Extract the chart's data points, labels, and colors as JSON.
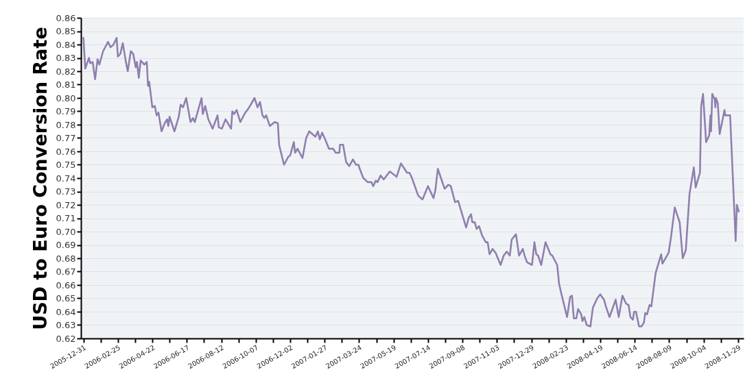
{
  "chart_data": {
    "type": "line",
    "ylabel": "USD to Euro Conversion Rate",
    "x": [
      "2005-12-31",
      "2006-01-03",
      "2006-01-09",
      "2006-01-11",
      "2006-01-15",
      "2006-01-19",
      "2006-01-23",
      "2006-01-26",
      "2006-02-01",
      "2006-02-09",
      "2006-02-13",
      "2006-02-18",
      "2006-02-23",
      "2006-02-25",
      "2006-03-01",
      "2006-03-05",
      "2006-03-10",
      "2006-03-13",
      "2006-03-18",
      "2006-03-22",
      "2006-03-26",
      "2006-03-28",
      "2006-03-31",
      "2006-04-03",
      "2006-04-09",
      "2006-04-13",
      "2006-04-15",
      "2006-04-17",
      "2006-04-22",
      "2006-04-26",
      "2006-04-29",
      "2006-05-02",
      "2006-05-07",
      "2006-05-12",
      "2006-05-16",
      "2006-05-18",
      "2006-05-20",
      "2006-05-28",
      "2006-06-04",
      "2006-06-07",
      "2006-06-11",
      "2006-06-16",
      "2006-06-23",
      "2006-06-27",
      "2006-06-30",
      "2006-07-11",
      "2006-07-13",
      "2006-07-17",
      "2006-07-22",
      "2006-07-29",
      "2006-08-06",
      "2006-08-08",
      "2006-08-13",
      "2006-08-19",
      "2006-08-28",
      "2006-08-30",
      "2006-09-02",
      "2006-09-06",
      "2006-09-12",
      "2006-09-20",
      "2006-09-25",
      "2006-09-29",
      "2006-10-05",
      "2006-10-10",
      "2006-10-14",
      "2006-10-18",
      "2006-10-21",
      "2006-10-24",
      "2006-10-30",
      "2006-11-07",
      "2006-11-12",
      "2006-11-14",
      "2006-11-22",
      "2006-11-29",
      "2006-12-02",
      "2006-12-08",
      "2006-12-10",
      "2006-12-14",
      "2006-12-22",
      "2006-12-28",
      "2007-01-02",
      "2007-01-12",
      "2007-01-16",
      "2007-01-19",
      "2007-01-23",
      "2007-01-27",
      "2007-02-03",
      "2007-02-10",
      "2007-02-14",
      "2007-02-20",
      "2007-02-21",
      "2007-02-26",
      "2007-03-03",
      "2007-03-08",
      "2007-03-14",
      "2007-03-19",
      "2007-03-23",
      "2007-03-25",
      "2007-03-31",
      "2007-04-07",
      "2007-04-13",
      "2007-04-16",
      "2007-04-20",
      "2007-04-23",
      "2007-04-28",
      "2007-05-03",
      "2007-05-13",
      "2007-05-24",
      "2007-05-31",
      "2007-06-10",
      "2007-06-14",
      "2007-06-18",
      "2007-06-28",
      "2007-07-05",
      "2007-07-14",
      "2007-07-23",
      "2007-07-26",
      "2007-07-30",
      "2007-08-10",
      "2007-08-16",
      "2007-08-20",
      "2007-08-27",
      "2007-09-01",
      "2007-09-14",
      "2007-09-18",
      "2007-09-22",
      "2007-09-24",
      "2007-09-28",
      "2007-10-01",
      "2007-10-05",
      "2007-10-10",
      "2007-10-16",
      "2007-10-19",
      "2007-10-22",
      "2007-10-27",
      "2007-11-01",
      "2007-11-09",
      "2007-11-14",
      "2007-11-19",
      "2007-11-24",
      "2007-11-27",
      "2007-12-04",
      "2007-12-09",
      "2007-12-15",
      "2007-12-18",
      "2007-12-22",
      "2007-12-30",
      "2008-01-03",
      "2008-01-06",
      "2008-01-09",
      "2008-01-14",
      "2008-01-21",
      "2008-01-29",
      "2008-02-01",
      "2008-02-09",
      "2008-02-12",
      "2008-02-16",
      "2008-02-25",
      "2008-03-01",
      "2008-03-04",
      "2008-03-07",
      "2008-03-11",
      "2008-03-14",
      "2008-03-19",
      "2008-03-21",
      "2008-03-24",
      "2008-03-28",
      "2008-04-03",
      "2008-04-07",
      "2008-04-14",
      "2008-04-19",
      "2008-04-25",
      "2008-04-28",
      "2008-05-04",
      "2008-05-14",
      "2008-05-19",
      "2008-05-25",
      "2008-05-31",
      "2008-06-04",
      "2008-06-07",
      "2008-06-11",
      "2008-06-13",
      "2008-06-16",
      "2008-06-21",
      "2008-06-25",
      "2008-06-29",
      "2008-07-01",
      "2008-07-04",
      "2008-07-08",
      "2008-07-11",
      "2008-07-18",
      "2008-07-27",
      "2008-07-29",
      "2008-08-08",
      "2008-08-12",
      "2008-08-18",
      "2008-08-26",
      "2008-08-31",
      "2008-09-05",
      "2008-09-11",
      "2008-09-18",
      "2008-09-21",
      "2008-09-28",
      "2008-09-30",
      "2008-10-03",
      "2008-10-08",
      "2008-10-13",
      "2008-10-15",
      "2008-10-16",
      "2008-10-18",
      "2008-10-22",
      "2008-10-23",
      "2008-10-24",
      "2008-10-27",
      "2008-10-30",
      "2008-11-07",
      "2008-11-08",
      "2008-11-16",
      "2008-11-25",
      "2008-11-27",
      "2008-11-30"
    ],
    "series": [
      {
        "color": "#8f7fae",
        "values": [
          0.845,
          0.822,
          0.83,
          0.826,
          0.827,
          0.814,
          0.829,
          0.825,
          0.835,
          0.842,
          0.838,
          0.84,
          0.845,
          0.831,
          0.833,
          0.841,
          0.827,
          0.82,
          0.835,
          0.833,
          0.823,
          0.827,
          0.815,
          0.828,
          0.825,
          0.827,
          0.809,
          0.812,
          0.793,
          0.794,
          0.787,
          0.789,
          0.775,
          0.781,
          0.784,
          0.779,
          0.786,
          0.775,
          0.786,
          0.795,
          0.793,
          0.8,
          0.782,
          0.785,
          0.782,
          0.8,
          0.788,
          0.794,
          0.784,
          0.777,
          0.787,
          0.778,
          0.777,
          0.784,
          0.777,
          0.79,
          0.788,
          0.791,
          0.782,
          0.789,
          0.792,
          0.795,
          0.8,
          0.793,
          0.797,
          0.787,
          0.785,
          0.787,
          0.779,
          0.782,
          0.781,
          0.765,
          0.75,
          0.756,
          0.757,
          0.767,
          0.759,
          0.762,
          0.755,
          0.77,
          0.775,
          0.771,
          0.775,
          0.769,
          0.774,
          0.77,
          0.762,
          0.762,
          0.759,
          0.759,
          0.765,
          0.765,
          0.752,
          0.749,
          0.754,
          0.75,
          0.75,
          0.747,
          0.74,
          0.737,
          0.737,
          0.734,
          0.738,
          0.737,
          0.742,
          0.739,
          0.745,
          0.741,
          0.751,
          0.744,
          0.744,
          0.74,
          0.727,
          0.724,
          0.734,
          0.725,
          0.731,
          0.747,
          0.732,
          0.735,
          0.734,
          0.722,
          0.723,
          0.703,
          0.71,
          0.713,
          0.707,
          0.707,
          0.702,
          0.704,
          0.697,
          0.692,
          0.692,
          0.683,
          0.687,
          0.684,
          0.675,
          0.682,
          0.685,
          0.682,
          0.694,
          0.698,
          0.682,
          0.687,
          0.682,
          0.677,
          0.675,
          0.692,
          0.683,
          0.682,
          0.675,
          0.692,
          0.683,
          0.682,
          0.675,
          0.661,
          0.653,
          0.636,
          0.651,
          0.652,
          0.635,
          0.635,
          0.642,
          0.638,
          0.633,
          0.636,
          0.63,
          0.629,
          0.643,
          0.65,
          0.653,
          0.649,
          0.644,
          0.636,
          0.649,
          0.636,
          0.652,
          0.646,
          0.645,
          0.636,
          0.634,
          0.64,
          0.64,
          0.629,
          0.629,
          0.632,
          0.639,
          0.638,
          0.645,
          0.644,
          0.669,
          0.683,
          0.676,
          0.684,
          0.696,
          0.718,
          0.707,
          0.68,
          0.686,
          0.728,
          0.748,
          0.733,
          0.744,
          0.794,
          0.803,
          0.767,
          0.772,
          0.787,
          0.775,
          0.803,
          0.799,
          0.793,
          0.8,
          0.796,
          0.773,
          0.791,
          0.787,
          0.787,
          0.693,
          0.72,
          0.715
        ]
      }
    ],
    "xlim": [
      "2005-12-27",
      "2008-12-08"
    ],
    "xticks": [
      "2005-12-31",
      {
        "value": "2006-01-28",
        "label": null
      },
      "2006-02-25",
      {
        "value": "2006-03-25",
        "label": null
      },
      "2006-04-22",
      {
        "value": "2006-05-20",
        "label": null
      },
      "2006-06-17",
      {
        "value": "2006-07-15",
        "label": null
      },
      "2006-08-12",
      {
        "value": "2006-09-09",
        "label": null
      },
      "2006-10-07",
      {
        "value": "2006-11-04",
        "label": null
      },
      "2006-12-02",
      {
        "value": "2006-12-30",
        "label": null
      },
      "2007-01-27",
      {
        "value": "2007-02-24",
        "label": null
      },
      "2007-03-24",
      {
        "value": "2007-04-21",
        "label": null
      },
      "2007-05-19",
      {
        "value": "2007-06-16",
        "label": null
      },
      "2007-07-14",
      {
        "value": "2007-08-11",
        "label": null
      },
      "2007-09-08",
      {
        "value": "2007-10-06",
        "label": null
      },
      "2007-11-03",
      {
        "value": "2007-12-01",
        "label": null
      },
      "2007-12-29",
      {
        "value": "2008-01-26",
        "label": null
      },
      "2008-02-23",
      {
        "value": "2008-03-22",
        "label": null
      },
      "2008-04-19",
      {
        "value": "2008-05-17",
        "label": null
      },
      "2008-06-14",
      {
        "value": "2008-07-12",
        "label": null
      },
      "2008-08-09",
      {
        "value": "2008-09-06",
        "label": null
      },
      "2008-10-04",
      {
        "value": "2008-11-01",
        "label": null
      },
      "2008-11-29"
    ],
    "ylim": [
      0.62,
      0.86
    ],
    "yticks": [
      0.62,
      0.63,
      0.64,
      0.65,
      0.66,
      0.67,
      0.68,
      0.69,
      {
        "value": 0.7,
        "label": "0.70"
      },
      0.71,
      0.72,
      0.73,
      0.74,
      0.75,
      0.76,
      0.77,
      0.78,
      0.79,
      {
        "value": 0.8,
        "label": "0.80"
      },
      0.81,
      0.82,
      0.83,
      0.84,
      0.85,
      0.86
    ],
    "grid": "y"
  }
}
